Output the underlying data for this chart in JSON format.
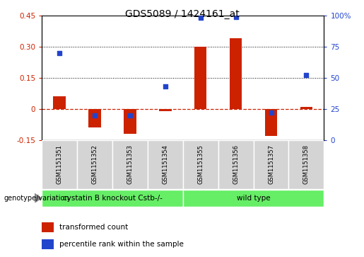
{
  "title": "GDS5089 / 1424161_at",
  "samples": [
    "GSM1151351",
    "GSM1151352",
    "GSM1151353",
    "GSM1151354",
    "GSM1151355",
    "GSM1151356",
    "GSM1151357",
    "GSM1151358"
  ],
  "transformed_count": [
    0.06,
    -0.09,
    -0.12,
    -0.01,
    0.3,
    0.34,
    -0.13,
    0.01
  ],
  "percentile_rank": [
    70,
    20,
    20,
    43,
    98,
    99,
    22,
    52
  ],
  "ylim_left": [
    -0.15,
    0.45
  ],
  "ylim_right": [
    0,
    100
  ],
  "yticks_left": [
    -0.15,
    0.0,
    0.15,
    0.3,
    0.45
  ],
  "yticks_right": [
    0,
    25,
    50,
    75,
    100
  ],
  "ytick_labels_left": [
    "-0.15",
    "0",
    "0.15",
    "0.30",
    "0.45"
  ],
  "ytick_labels_right": [
    "0",
    "25",
    "50",
    "75",
    "100%"
  ],
  "hlines": [
    0.15,
    0.3
  ],
  "group1_label": "cystatin B knockout Cstb-/-",
  "group2_label": "wild type",
  "group_color": "#66ee66",
  "group_label_prefix": "genotype/variation",
  "legend_items": [
    {
      "label": "transformed count",
      "color": "#cc2200"
    },
    {
      "label": "percentile rank within the sample",
      "color": "#2244cc"
    }
  ],
  "bar_color": "#cc2200",
  "dot_color": "#2244cc",
  "zero_line_color": "#cc2200",
  "cell_bg_color": "#d4d4d4",
  "plot_bg_color": "#ffffff",
  "fig_bg_color": "#ffffff"
}
